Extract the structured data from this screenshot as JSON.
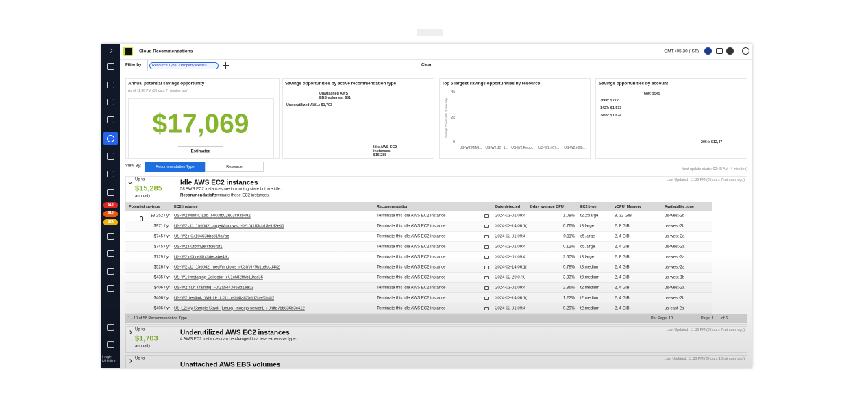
{
  "app": {
    "title": "Cloud Recommendations",
    "timezone": "GMT+05:30 (IST)",
    "badges": [
      "$13",
      "$18",
      "$24"
    ],
    "brand": "Logic Monitor"
  },
  "filter": {
    "label": "Filter by:",
    "chip": "Resource Type: <Property exists>",
    "clear": "Clear"
  },
  "summary": {
    "title": "Annual potential savings opportunity",
    "subtitle": "As of 11:36 PM (3 hours 7 minutes ago)",
    "value": "$17,069",
    "note": "Estimated"
  },
  "by_type": {
    "title": "Savings opportunities by active recommendation type",
    "segments": [
      {
        "label": "Idle AWS EC2 instances: $15,285",
        "value": 15285,
        "color": "#f08a4b"
      },
      {
        "label": "Underutilized AW...: $1,703",
        "value": 1703,
        "color": "#c2410c"
      },
      {
        "label": "Unattached AWS EBS volumes: $81",
        "value": 81,
        "color": "#7f1d1d"
      }
    ]
  },
  "top5": {
    "title": "Top 5 largest savings opportunities by resource",
    "y_label": "Savings Opportunity ($ annually)",
    "categories": [
      "US-W2:MIMI...",
      "US-W2:JD_1...",
      "US-W2:Repo...",
      "US-W2:i-07...",
      "US-W2:i-0fb..."
    ],
    "values": [
      3252,
      971,
      745,
      745,
      729
    ],
    "color": "#1d4ed8",
    "ylim": [
      0,
      4000
    ],
    "yticks": [
      0,
      {
        "value": 2000,
        "label": "2k"
      },
      {
        "value": 4000,
        "label": "4k"
      }
    ]
  },
  "by_account": {
    "title": "Savings opportunities by account",
    "segments": [
      {
        "label": "2064: $12,47",
        "value": 12470,
        "color": "#f08a4b"
      },
      {
        "label": "3499: $1,624",
        "value": 1624,
        "color": "#e4572e"
      },
      {
        "label": "1427: $1,533",
        "value": 1533,
        "color": "#7f1d1d"
      },
      {
        "label": "3668: $772",
        "value": 772,
        "color": "#6b21a8"
      },
      {
        "label": "680: $545",
        "value": 545,
        "color": "#d8a5e8"
      }
    ]
  },
  "view": {
    "label": "View By:",
    "tabs": [
      "Recommendation Type",
      "Resource"
    ],
    "next_update": "Next update starts: 02:48 AM (4 minutes)"
  },
  "groups": [
    {
      "up_to": "Up to",
      "amount": "$15,285",
      "period": "annually",
      "title": "Idle AWS EC2 instances",
      "description": "58 AWS EC2 instances are in running state but are idle.",
      "rec_label": "Recommendation:",
      "rec": "Terminate these EC2 instances.",
      "updated": "Last Updated: 11:36 PM (3 hours 7 minutes ago)"
    },
    {
      "up_to": "Up to",
      "amount": "$1,703",
      "period": "annually",
      "title": "Underutilized AWS EC2 instances",
      "description": "4 AWS EC2 instances can be changed to a less expensive type.",
      "updated": "Last Updated: 11:36 PM (3 hours 7 minutes ago)"
    },
    {
      "up_to": "Up to",
      "title": "Unattached AWS EBS volumes",
      "updated": "Last Updated: 11:33 PM (3 hours 10 minutes ago)"
    }
  ],
  "table": {
    "columns": [
      "Potential savings",
      "EC2 instance",
      "Recommendation",
      "Date detected",
      "2-day average CPU",
      "EC2 type",
      "vCPU, Memory",
      "Availability zone"
    ],
    "rows": [
      [
        "$3,252 / yr",
        "US-W2:MIMIC Lab_i-003fb02e03c93b492",
        "Terminate this idle AWS EC2 instance",
        "2024-03-01 09:4",
        "1.08%",
        "t2.2xlarge",
        "8, 32 GiB",
        "us-west-2b"
      ],
      [
        "$971 / yr",
        "US-W2:JD_156042_largeWindows_i-02f74103cb18e132e#1",
        "Terminate this idle AWS EC2 instance",
        "2024-03-14 06:1(",
        "0.76%",
        "t3.large",
        "2, 8 GiB",
        "us-west-2b"
      ],
      [
        "$745 / yr",
        "US-W2:i-0710463bbc319a7ac",
        "Terminate this idle AWS EC2 instance",
        "2024-03-01 09:4",
        "0.11%",
        "c5.large",
        "2, 4 GiB",
        "us-west-2a"
      ],
      [
        "$745 / yr",
        "US-W2:i-0fbff42efcba6f5f1",
        "Terminate this idle AWS EC2 instance",
        "2024-03-01 09:4",
        "0.12%",
        "c5.large",
        "2, 4 GiB",
        "us-west-2a"
      ],
      [
        "$729 / yr",
        "US-W2:i-0bce8073decabe49c",
        "Terminate this idle AWS EC2 instance",
        "2024-03-01 09:4",
        "2.60%",
        "t3.large",
        "2, 8 GiB",
        "us-west-2a"
      ],
      [
        "$526 / yr",
        "US-W2:JD_156042_medWindows_i-03f77f79b1b9bcd4#2",
        "Terminate this idle AWS EC2 instance",
        "2024-03-14 06:1(",
        "0.78%",
        "t3.medium",
        "2, 4 GiB",
        "us-west-2a"
      ],
      [
        "$435 / yr",
        "US-W1:Imstaging Collector_i-01c582ff5b13fac36",
        "Terminate this idle AWS EC2 instance",
        "2024-02-29 07:0",
        "3.33%",
        "t3.medium",
        "2, 4 GiB",
        "us-west-1b"
      ],
      [
        "$406 / yr",
        "US-W2:Yuri Training_i-0f2a5443453b1ee03",
        "Terminate this idle AWS EC2 instance",
        "2024-03-01 09:4",
        "2.86%",
        "t2.medium",
        "2, 4 GiB",
        "us-west-2a"
      ],
      [
        "$406 / yr",
        "US-W2:Testlink_WHITE_LIST_i-0fb8a825602be20fd#2",
        "Terminate this idle AWS EC2 instance",
        "2024-03-14 06:1(",
        "1.22%",
        "t2.medium",
        "2, 4 GiB",
        "us-west-2b"
      ],
      [
        "$406 / yr",
        "US-E2:My Sample Stack (Linux) - nodejs-server1_i-0fdfd75b836b3c412",
        "Terminate this idle AWS EC2 instance",
        "2024-03-01 09:4",
        "0.29%",
        "t2.medium",
        "2, 4 GiB",
        "us-east-2a"
      ]
    ],
    "footer": "1 - 10 of 58 Recommendation Type",
    "per_page": "Per Page: 10",
    "page": "Page: 1",
    "of": "of 6"
  }
}
